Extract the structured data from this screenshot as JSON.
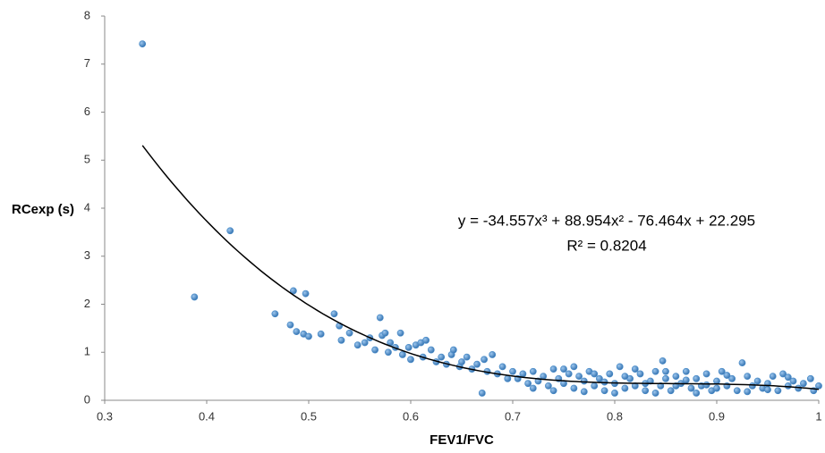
{
  "chart_data": {
    "type": "scatter",
    "x_label": "FEV1/FVC",
    "y_label": "RCexp (s)",
    "x": [
      0.337,
      0.388,
      0.423,
      0.467,
      0.485,
      0.497,
      0.482,
      0.488,
      0.495,
      0.5,
      0.512,
      0.525,
      0.53,
      0.532,
      0.54,
      0.548,
      0.555,
      0.56,
      0.565,
      0.57,
      0.572,
      0.575,
      0.578,
      0.58,
      0.585,
      0.59,
      0.592,
      0.598,
      0.6,
      0.605,
      0.61,
      0.612,
      0.615,
      0.62,
      0.625,
      0.63,
      0.635,
      0.64,
      0.642,
      0.648,
      0.65,
      0.655,
      0.66,
      0.665,
      0.67,
      0.672,
      0.675,
      0.68,
      0.685,
      0.69,
      0.695,
      0.7,
      0.705,
      0.71,
      0.715,
      0.72,
      0.725,
      0.73,
      0.735,
      0.74,
      0.745,
      0.75,
      0.755,
      0.76,
      0.765,
      0.77,
      0.775,
      0.78,
      0.785,
      0.79,
      0.795,
      0.8,
      0.805,
      0.81,
      0.815,
      0.82,
      0.825,
      0.83,
      0.835,
      0.84,
      0.845,
      0.85,
      0.855,
      0.86,
      0.865,
      0.87,
      0.875,
      0.88,
      0.885,
      0.89,
      0.895,
      0.9,
      0.905,
      0.91,
      0.915,
      0.92,
      0.93,
      0.935,
      0.94,
      0.945,
      0.95,
      0.955,
      0.96,
      0.965,
      0.97,
      0.975,
      0.98,
      0.985,
      0.995,
      0.72,
      0.74,
      0.76,
      0.78,
      0.8,
      0.82,
      0.84,
      0.86,
      0.88,
      0.9,
      0.75,
      0.77,
      0.79,
      0.81,
      0.83,
      0.85,
      0.87,
      0.89,
      0.91,
      0.93,
      0.95,
      0.97,
      0.847,
      0.925,
      0.992,
      1.0
    ],
    "series": [
      {
        "name": "RCexp",
        "color": "#4a8cc9",
        "values": [
          7.42,
          2.15,
          3.53,
          1.8,
          2.28,
          2.22,
          1.57,
          1.43,
          1.38,
          1.33,
          1.38,
          1.8,
          1.55,
          1.25,
          1.4,
          1.15,
          1.2,
          1.3,
          1.05,
          1.72,
          1.35,
          1.4,
          1.0,
          1.2,
          1.1,
          1.4,
          0.95,
          1.1,
          0.85,
          1.15,
          1.2,
          0.9,
          1.25,
          1.05,
          0.8,
          0.9,
          0.75,
          0.95,
          1.05,
          0.7,
          0.8,
          0.9,
          0.65,
          0.75,
          0.15,
          0.85,
          0.6,
          0.95,
          0.55,
          0.7,
          0.45,
          0.6,
          0.45,
          0.55,
          0.35,
          0.6,
          0.4,
          0.5,
          0.3,
          0.65,
          0.45,
          0.35,
          0.55,
          0.25,
          0.5,
          0.4,
          0.6,
          0.3,
          0.45,
          0.2,
          0.55,
          0.35,
          0.7,
          0.25,
          0.45,
          0.3,
          0.55,
          0.2,
          0.4,
          0.6,
          0.3,
          0.45,
          0.2,
          0.5,
          0.35,
          0.6,
          0.25,
          0.45,
          0.3,
          0.55,
          0.2,
          0.4,
          0.6,
          0.3,
          0.45,
          0.2,
          0.5,
          0.3,
          0.4,
          0.25,
          0.35,
          0.5,
          0.2,
          0.55,
          0.3,
          0.4,
          0.25,
          0.35,
          0.2,
          0.25,
          0.2,
          0.7,
          0.55,
          0.15,
          0.65,
          0.15,
          0.3,
          0.15,
          0.25,
          0.65,
          0.18,
          0.38,
          0.5,
          0.35,
          0.6,
          0.42,
          0.32,
          0.52,
          0.18,
          0.22,
          0.48,
          0.82,
          0.78,
          0.45,
          0.3
        ]
      }
    ],
    "trendline": {
      "coefficients": [
        -34.557,
        88.954,
        -76.464,
        22.295
      ],
      "xlim": [
        0.337,
        1.0
      ],
      "equation": "y = -34.557x³ + 88.954x² - 76.464x + 22.295",
      "r_squared": "R² = 0.8204"
    },
    "xlim": [
      0.3,
      1
    ],
    "xticks": [
      0.3,
      0.4,
      0.5,
      0.6,
      0.7,
      0.8,
      0.9,
      1
    ],
    "ylim": [
      0,
      8
    ],
    "yticks": [
      0,
      1,
      2,
      3,
      4,
      5,
      6,
      7,
      8
    ]
  }
}
